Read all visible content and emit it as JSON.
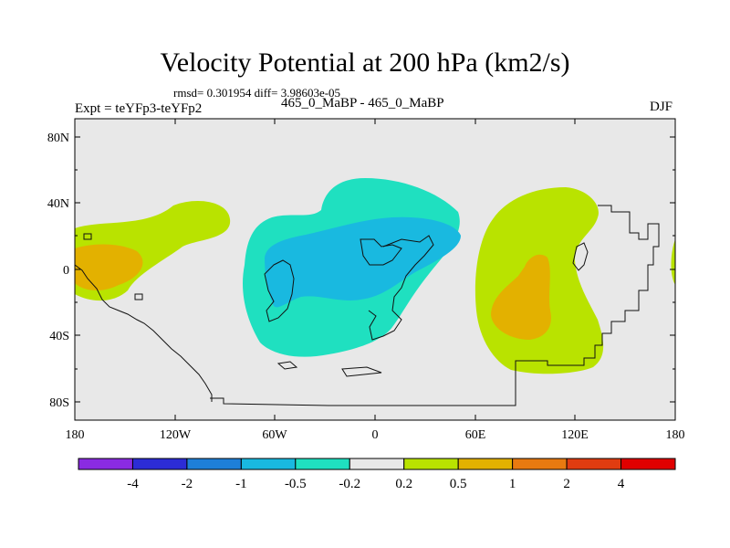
{
  "title": "Velocity Potential at 200 hPa (km2/s)",
  "stats_line": "rmsd= 0.301954  diff= 3.98603e-05",
  "expt_label": "Expt = teYFp3-teYFp2",
  "case_label": "465_0_MaBP - 465_0_MaBP",
  "season": "DJF",
  "lat_ticks": [
    "80N",
    "40N",
    "0",
    "40S",
    "80S"
  ],
  "lon_ticks": [
    "180",
    "120W",
    "60W",
    "0",
    "60E",
    "120E",
    "180"
  ],
  "colorbar": {
    "labels": [
      "-4",
      "-2",
      "-1",
      "-0.5",
      "-0.2",
      "0.2",
      "0.5",
      "1",
      "2",
      "4"
    ],
    "colors": [
      "#8a2be2",
      "#2c2cd6",
      "#1e7fd9",
      "#19b9e0",
      "#1fe0c0",
      "#e8e8e8",
      "#b9e300",
      "#e3b100",
      "#e87a10",
      "#e03c10",
      "#e00000"
    ]
  }
}
